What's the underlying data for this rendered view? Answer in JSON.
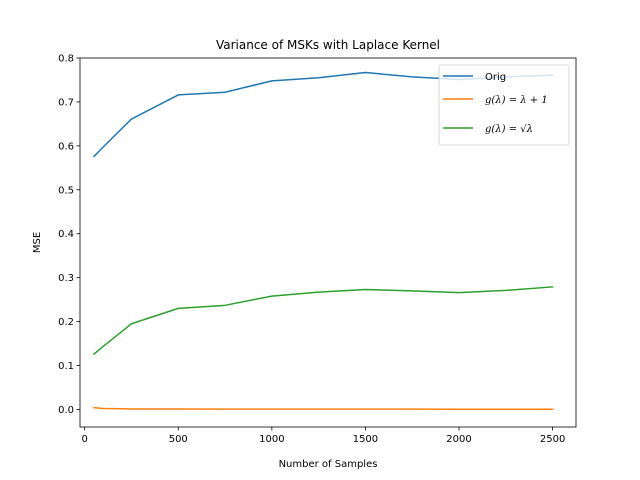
{
  "chart_data": {
    "type": "line",
    "title": "Variance of MSKs with Laplace Kernel",
    "xlabel": "Number of Samples",
    "ylabel": "MSE",
    "xlim": [
      -25,
      2625
    ],
    "ylim": [
      -0.04,
      0.8
    ],
    "xticks": [
      0,
      500,
      1000,
      1500,
      2000,
      2500
    ],
    "xtick_labels": [
      "0",
      "500",
      "1000",
      "1500",
      "2000",
      "2500"
    ],
    "yticks": [
      0.0,
      0.1,
      0.2,
      0.3,
      0.4,
      0.5,
      0.6,
      0.7,
      0.8
    ],
    "ytick_labels": [
      "0.0",
      "0.1",
      "0.2",
      "0.3",
      "0.4",
      "0.5",
      "0.6",
      "0.7",
      "0.8"
    ],
    "grid": false,
    "legend_position": "top-right",
    "x": [
      50,
      100,
      250,
      500,
      750,
      1000,
      1250,
      1500,
      1750,
      2000,
      2250,
      2500
    ],
    "series": [
      {
        "name": "Orig",
        "color": "#1f77b4",
        "values": [
          0.576,
          0.598,
          0.661,
          0.716,
          0.722,
          0.748,
          0.755,
          0.767,
          0.757,
          0.751,
          0.757,
          0.761
        ]
      },
      {
        "name": "g(λ) = λ + 1",
        "color": "#ff7f0e",
        "values": [
          0.004,
          0.002,
          0.001,
          0.001,
          0.0008,
          0.0007,
          0.0006,
          0.0006,
          0.0006,
          0.0005,
          0.0005,
          0.0005
        ]
      },
      {
        "name": "g(λ) = √λ",
        "color": "#2ca02c",
        "values": [
          0.126,
          0.144,
          0.195,
          0.23,
          0.237,
          0.258,
          0.267,
          0.273,
          0.27,
          0.266,
          0.271,
          0.279
        ]
      }
    ]
  }
}
